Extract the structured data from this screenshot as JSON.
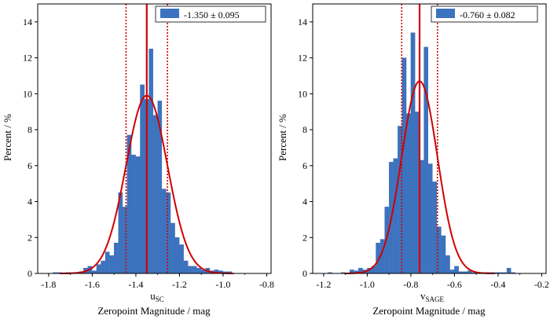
{
  "colors": {
    "bar": "#3b73c0",
    "bar_edge": "#2a5a9e",
    "fit": "#d00000",
    "axis": "#000000"
  },
  "chart_data": [
    {
      "type": "bar",
      "id": "left",
      "ylabel": "Percent / %",
      "xlabel_main": "u",
      "xlabel_sub": "SC",
      "bottom_label": "Zeropoint Magnitude / mag",
      "legend_label": "-1.350 ± 0.095",
      "xlim": [
        -1.85,
        -0.78
      ],
      "ylim": [
        0,
        15
      ],
      "xticks": [
        -1.8,
        -1.6,
        -1.4,
        -1.2,
        -1.0,
        -0.8
      ],
      "xtick_labels": [
        "-1.8",
        "-1.6",
        "-1.4",
        "-1.2",
        "-1.0",
        "-0.8"
      ],
      "yticks": [
        0,
        2,
        4,
        6,
        8,
        10,
        12,
        14
      ],
      "ytick_labels": [
        "0",
        "2",
        "4",
        "6",
        "8",
        "10",
        "12",
        "14"
      ],
      "bin_start": -1.8,
      "bin_width": 0.02,
      "values": [
        0,
        0.05,
        0.05,
        0,
        0.05,
        0,
        0.05,
        0.1,
        0.3,
        0.4,
        0.15,
        0.5,
        0.7,
        1.2,
        1.0,
        1.7,
        4.5,
        3.7,
        7.7,
        6.6,
        6.5,
        10.5,
        9.7,
        12.5,
        8.8,
        9.6,
        4.7,
        4.5,
        2.8,
        2.0,
        1.6,
        0.7,
        0.4,
        0.4,
        0.3,
        0.2,
        0.3,
        0.15,
        0.2,
        0.15,
        0.1,
        0.1
      ],
      "fit": {
        "mean": -1.35,
        "sigma": 0.095,
        "peak": 9.9
      },
      "vlines": {
        "mean": -1.35,
        "lower": -1.445,
        "upper": -1.255
      }
    },
    {
      "type": "bar",
      "id": "right",
      "ylabel": "Percent / %",
      "xlabel_main": "v",
      "xlabel_sub": "SAGE",
      "bottom_label": "Zeropoint Magnitude / mag",
      "legend_label": "-0.760 ± 0.082",
      "xlim": [
        -1.25,
        -0.18
      ],
      "ylim": [
        0,
        15
      ],
      "xticks": [
        -1.2,
        -1.0,
        -0.8,
        -0.6,
        -0.4,
        -0.2
      ],
      "xtick_labels": [
        "-1.2",
        "-1.0",
        "-0.8",
        "-0.6",
        "-0.4",
        "-0.2"
      ],
      "yticks": [
        0,
        2,
        4,
        6,
        8,
        10,
        12,
        14
      ],
      "ytick_labels": [
        "0",
        "2",
        "4",
        "6",
        "8",
        "10",
        "12",
        "14"
      ],
      "bin_start": -1.18,
      "bin_width": 0.02,
      "values": [
        0.05,
        0,
        0,
        0.05,
        0,
        0.2,
        0.15,
        0.3,
        0.2,
        0.3,
        0.4,
        1.7,
        1.9,
        3.7,
        6.2,
        6.4,
        8.2,
        12.0,
        8.9,
        13.4,
        9.0,
        6.3,
        12.6,
        6.1,
        5.1,
        2.6,
        2.1,
        1.0,
        0.2,
        0.4,
        0.1,
        0.1,
        0.15,
        0.05,
        0,
        0.05,
        0.05,
        0.05,
        0.05,
        0.05,
        0.05,
        0.3,
        0.05
      ],
      "fit": {
        "mean": -0.76,
        "sigma": 0.082,
        "peak": 10.7
      },
      "vlines": {
        "mean": -0.76,
        "lower": -0.842,
        "upper": -0.678
      }
    }
  ]
}
